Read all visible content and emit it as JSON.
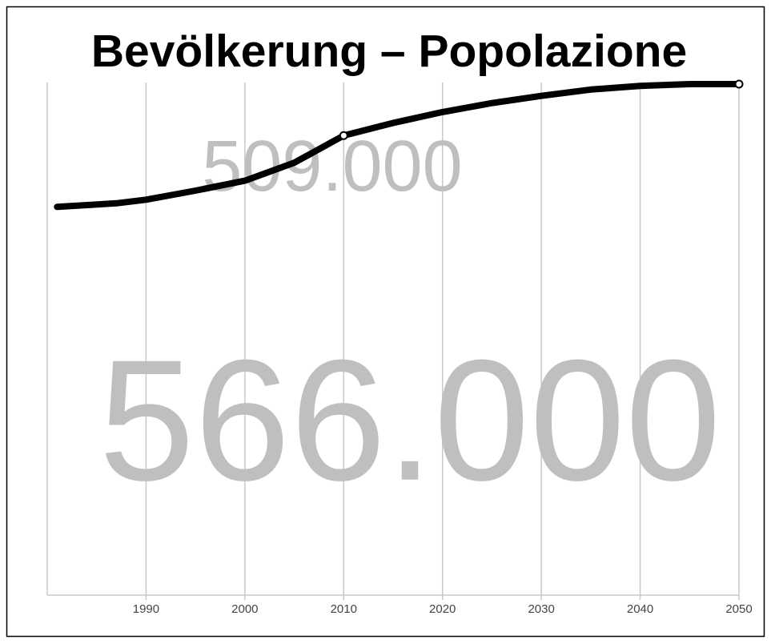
{
  "chart_data": {
    "type": "line",
    "title": "Bevölkerung – Popolazione",
    "x": [
      1981,
      1987,
      1990,
      1995,
      2000,
      2005,
      2010,
      2015,
      2020,
      2025,
      2030,
      2035,
      2040,
      2045,
      2050
    ],
    "series": [
      {
        "color": "#000000",
        "values": [
          430000,
          434000,
          438000,
          448000,
          459000,
          479000,
          509000,
          523000,
          535000,
          545000,
          553000,
          560000,
          564000,
          566000,
          566000
        ]
      }
    ],
    "xlim": [
      1980,
      2050
    ],
    "xticks": [
      1990,
      2000,
      2010,
      2020,
      2030,
      2040,
      2050
    ],
    "ylim": [
      0,
      566000
    ],
    "grid": true,
    "annotations": [
      {
        "text": "509.000",
        "x": 2010,
        "y": 509000
      },
      {
        "text": "566.000",
        "x": 2050,
        "y": 566000
      }
    ]
  }
}
